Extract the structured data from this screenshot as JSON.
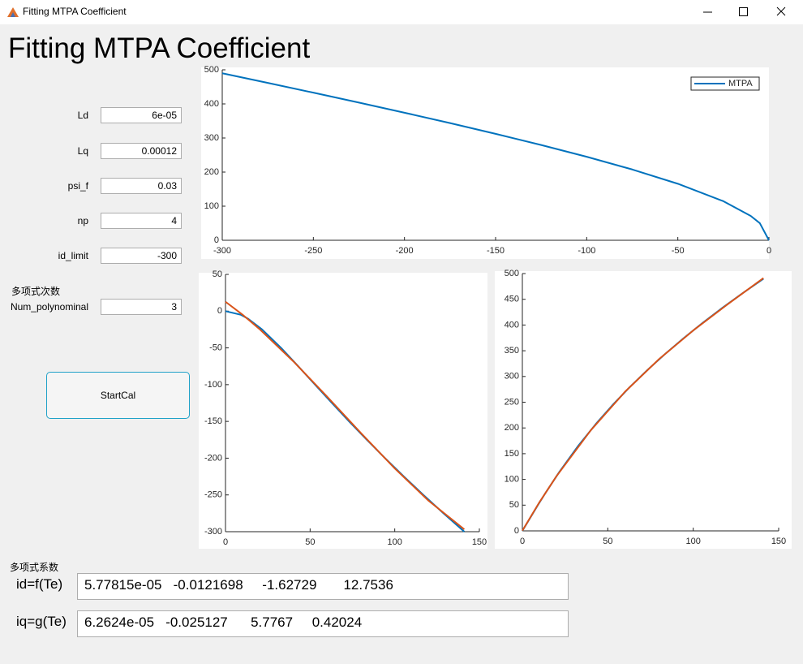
{
  "window": {
    "title": "Fitting MTPA Coefficient"
  },
  "heading": "Fitting MTPA Coefficient",
  "inputs": [
    {
      "label": "Ld",
      "value": "6e-05"
    },
    {
      "label": "Lq",
      "value": "0.00012"
    },
    {
      "label": "psi_f",
      "value": "0.03"
    },
    {
      "label": "np",
      "value": "4"
    },
    {
      "label": "id_limit",
      "value": "-300"
    }
  ],
  "poly_order": {
    "section": "多项式次数",
    "label": "Num_polynominal",
    "value": "3"
  },
  "button": "StartCal",
  "results": {
    "section": "多项式系数",
    "rows": [
      {
        "label": "id=f(Te)",
        "value": "5.77815e-05   -0.0121698     -1.62729       12.7536"
      },
      {
        "label": "iq=g(Te)",
        "value": "6.2624e-05   -0.025127      5.7767     0.42024"
      }
    ]
  },
  "chart_data": [
    {
      "type": "line",
      "x": [
        -300,
        -275,
        -250,
        -225,
        -200,
        -175,
        -150,
        -125,
        -100,
        -75,
        -50,
        -25,
        -10,
        -5,
        0
      ],
      "series": [
        {
          "name": "MTPA",
          "color": "#0072bd",
          "values": [
            489.9,
            461.7,
            433.0,
            403.9,
            374.2,
            343.7,
            312.2,
            279.5,
            244.9,
            207.7,
            165.8,
            114.6,
            71.4,
            50.2,
            0
          ]
        }
      ],
      "xlim": [
        -300,
        0
      ],
      "xticks": [
        -300,
        -250,
        -200,
        -150,
        -100,
        -50,
        0
      ],
      "ylim": [
        0,
        500
      ],
      "yticks": [
        0,
        100,
        200,
        300,
        400,
        500
      ],
      "legend": "northeast"
    },
    {
      "type": "line",
      "series": [
        {
          "color": "#0072bd",
          "x": [
            0,
            9.13,
            13.11,
            21.66,
            32.83,
            42.99,
            52.9,
            62.89,
            73.05,
            83.52,
            94.3,
            105.42,
            116.91,
            128.81,
            141.1
          ],
          "values": [
            0,
            -5,
            -10,
            -25,
            -50,
            -75,
            -100,
            -125,
            -150,
            -175,
            -200,
            -225,
            -250,
            -275,
            -300
          ]
        },
        {
          "color": "#d95319",
          "x": [
            0,
            10,
            20,
            40,
            60,
            80,
            100,
            120,
            141.1
          ],
          "values": [
            12.75,
            -4.68,
            -24.2,
            -68.11,
            -116.22,
            -165.74,
            -213.9,
            -257.92,
            -296.83
          ]
        }
      ],
      "xlim": [
        0,
        150
      ],
      "xticks": [
        0,
        50,
        100,
        150
      ],
      "ylim": [
        -300,
        50
      ],
      "yticks": [
        -300,
        -250,
        -200,
        -150,
        -100,
        -50,
        0,
        50
      ]
    },
    {
      "type": "line",
      "series": [
        {
          "color": "#0072bd",
          "x": [
            0,
            9.13,
            13.11,
            21.66,
            32.83,
            42.99,
            52.9,
            62.89,
            73.05,
            83.52,
            94.3,
            105.42,
            116.91,
            128.81,
            141.1
          ],
          "values": [
            0,
            50.2,
            71.4,
            114.6,
            165.8,
            207.7,
            244.9,
            279.5,
            312.2,
            343.7,
            374.2,
            403.9,
            433.0,
            461.7,
            489.9
          ]
        },
        {
          "color": "#d95319",
          "x": [
            0,
            10,
            20,
            40,
            60,
            80,
            100,
            120,
            141.1
          ],
          "values": [
            0.42,
            55.74,
            106.4,
            195.3,
            270.09,
            333.81,
            389.44,
            440.0,
            491.17
          ]
        }
      ],
      "xlim": [
        0,
        150
      ],
      "xticks": [
        0,
        50,
        100,
        150
      ],
      "ylim": [
        0,
        500
      ],
      "yticks": [
        0,
        50,
        100,
        150,
        200,
        250,
        300,
        350,
        400,
        450,
        500
      ]
    }
  ]
}
